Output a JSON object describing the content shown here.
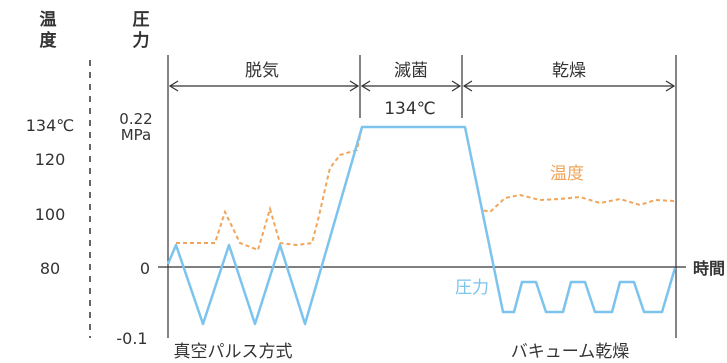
{
  "axes": {
    "temperature_label_chars": [
      "温",
      "度"
    ],
    "pressure_label_chars": [
      "圧",
      "力"
    ],
    "temperature_ticks": [
      "134℃",
      "120",
      "100",
      "80"
    ],
    "pressure_ticks": [
      "0.22",
      "MPa",
      "0",
      "-0.1"
    ],
    "time_label": "時間"
  },
  "phases": {
    "degas": "脱気",
    "sterilize": "滅菌",
    "dry": "乾燥"
  },
  "plateau_label": "134℃",
  "curves": {
    "temperature_label": "温度",
    "pressure_label": "圧力"
  },
  "bottom_labels": {
    "left": "真空パルス方式",
    "right": "バキューム乾燥"
  },
  "colors": {
    "pressure": "#7cc3ee",
    "temperature": "#f0a55a",
    "text": "#333333",
    "lines": "#333333"
  }
}
